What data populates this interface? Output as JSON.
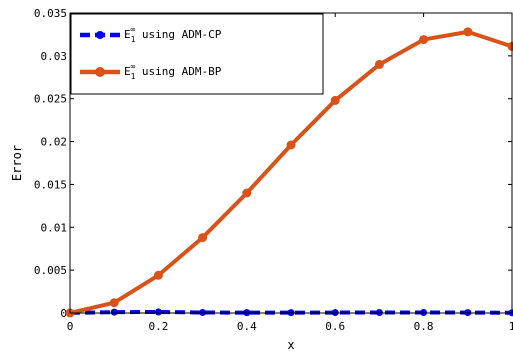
{
  "chart_data": {
    "type": "line",
    "xlabel": "x",
    "ylabel": "Error",
    "xlim": [
      0,
      1
    ],
    "ylim": [
      0,
      0.035
    ],
    "xticks": [
      0,
      0.2,
      0.4,
      0.6,
      0.8,
      1
    ],
    "xtick_labels": [
      "0",
      "0.2",
      "0.4",
      "0.6",
      "0.8",
      "1"
    ],
    "yticks": [
      0,
      0.005,
      0.01,
      0.015,
      0.02,
      0.025,
      0.03,
      0.035
    ],
    "ytick_labels": [
      "0",
      "0.005",
      "0.01",
      "0.015",
      "0.02",
      "0.025",
      "0.03",
      "0.035"
    ],
    "grid": false,
    "legend_position": "top-left",
    "x": [
      0,
      0.1,
      0.2,
      0.3,
      0.4,
      0.5,
      0.6,
      0.7,
      0.8,
      0.9,
      1.0
    ],
    "series": [
      {
        "name_main": "E",
        "name_sub": "1",
        "name_sup": "∞",
        "name_rest": " using ADM-CP",
        "color": "#0000ff",
        "line_style": "dashed",
        "values": [
          2e-05,
          0.0001,
          0.00012,
          6e-05,
          4e-05,
          4e-05,
          5e-05,
          6e-05,
          6e-05,
          5e-05,
          3e-05
        ]
      },
      {
        "name_main": "E",
        "name_sub": "1",
        "name_sup": "∞",
        "name_rest": " using ADM-BP",
        "color": "#d95319",
        "line_style": "solid",
        "values": [
          0.0,
          0.0012,
          0.0044,
          0.0088,
          0.014,
          0.0196,
          0.0248,
          0.029,
          0.0319,
          0.0328,
          0.0311
        ]
      }
    ]
  }
}
